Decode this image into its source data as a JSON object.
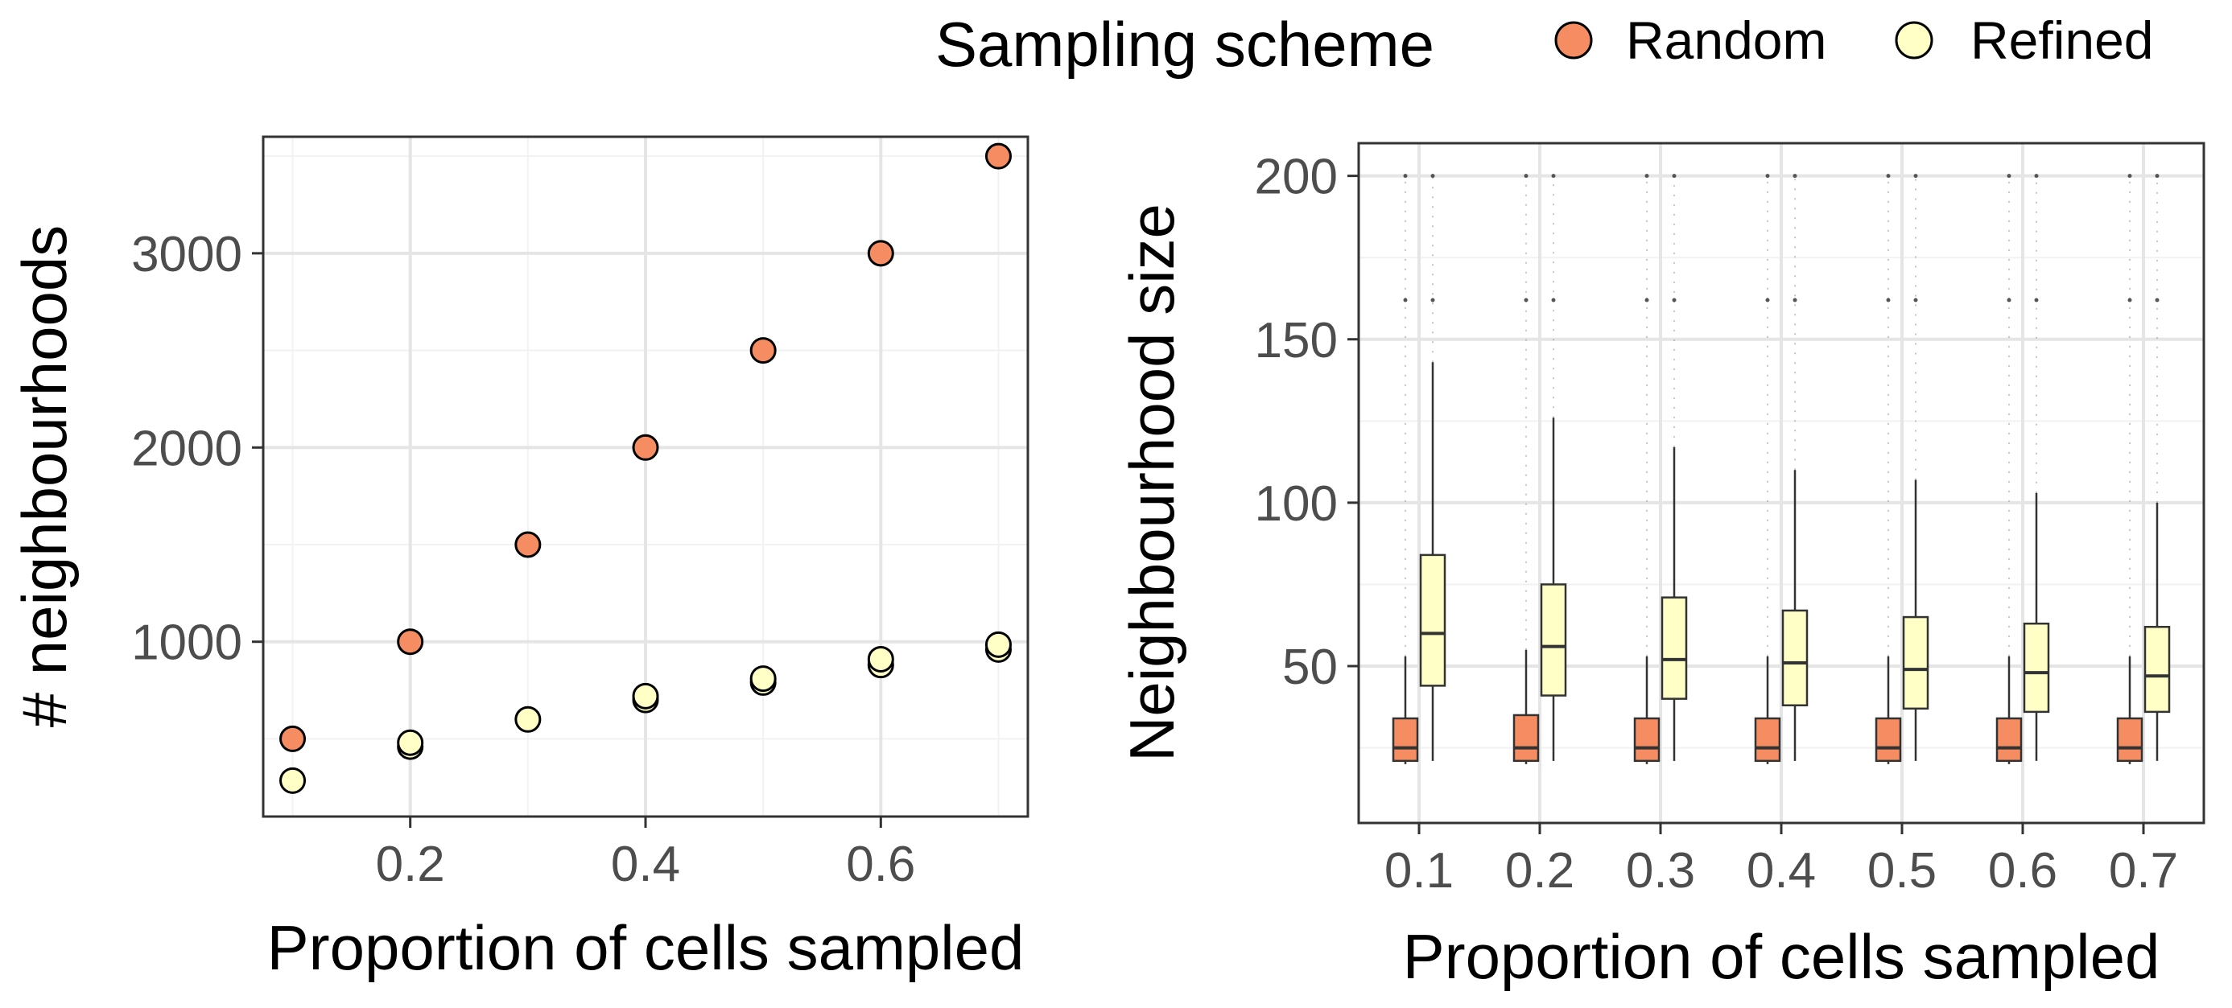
{
  "legend": {
    "title": "Sampling scheme",
    "items": [
      {
        "label": "Random",
        "color": "#F68D62"
      },
      {
        "label": "Refined",
        "color": "#FFFFC6"
      }
    ]
  },
  "chart_data": [
    {
      "type": "scatter",
      "xlabel": "Proportion of cells sampled",
      "ylabel": "# neighbourhoods",
      "xlim": [
        0.075,
        0.725
      ],
      "ylim": [
        100,
        3600
      ],
      "xticks": [
        0.2,
        0.4,
        0.6
      ],
      "xtick_labels": [
        "0.2",
        "0.4",
        "0.6"
      ],
      "yticks": [
        1000,
        2000,
        3000
      ],
      "ytick_labels": [
        "1000",
        "2000",
        "3000"
      ],
      "grid": true,
      "legend_position": "top",
      "series": [
        {
          "name": "Random",
          "color": "#F68D62",
          "x": [
            0.1,
            0.2,
            0.3,
            0.4,
            0.5,
            0.6,
            0.7
          ],
          "y": [
            500,
            1000,
            1500,
            2000,
            2500,
            3000,
            3500
          ]
        },
        {
          "name": "Refined",
          "color": "#FFFFC6",
          "x": [
            0.1,
            0.2,
            0.2,
            0.3,
            0.4,
            0.4,
            0.5,
            0.5,
            0.6,
            0.6,
            0.7,
            0.7
          ],
          "y": [
            285,
            460,
            480,
            600,
            700,
            720,
            790,
            810,
            880,
            910,
            960,
            985
          ]
        }
      ]
    },
    {
      "type": "boxplot",
      "xlabel": "Proportion of cells sampled",
      "ylabel": "Neighbourhood size",
      "ylim": [
        2,
        210
      ],
      "yticks": [
        50,
        100,
        150,
        200
      ],
      "ytick_labels": [
        "50",
        "100",
        "150",
        "200"
      ],
      "grid": true,
      "categories": [
        "0.1",
        "0.2",
        "0.3",
        "0.4",
        "0.5",
        "0.6",
        "0.7"
      ],
      "series": [
        {
          "name": "Random",
          "color": "#F68D62",
          "boxes": [
            {
              "whisker_low": 20,
              "q1": 21,
              "median": 25,
              "q3": 34,
              "whisker_high": 53
            },
            {
              "whisker_low": 20,
              "q1": 21,
              "median": 25,
              "q3": 35,
              "whisker_high": 55
            },
            {
              "whisker_low": 20,
              "q1": 21,
              "median": 25,
              "q3": 34,
              "whisker_high": 53
            },
            {
              "whisker_low": 20,
              "q1": 21,
              "median": 25,
              "q3": 34,
              "whisker_high": 53
            },
            {
              "whisker_low": 20,
              "q1": 21,
              "median": 25,
              "q3": 34,
              "whisker_high": 53
            },
            {
              "whisker_low": 20,
              "q1": 21,
              "median": 25,
              "q3": 34,
              "whisker_high": 53
            },
            {
              "whisker_low": 20,
              "q1": 21,
              "median": 25,
              "q3": 34,
              "whisker_high": 53
            }
          ]
        },
        {
          "name": "Refined",
          "color": "#FFFFC6",
          "boxes": [
            {
              "whisker_low": 21,
              "q1": 44,
              "median": 60,
              "q3": 84,
              "whisker_high": 143
            },
            {
              "whisker_low": 21,
              "q1": 41,
              "median": 56,
              "q3": 75,
              "whisker_high": 126
            },
            {
              "whisker_low": 21,
              "q1": 40,
              "median": 52,
              "q3": 71,
              "whisker_high": 117
            },
            {
              "whisker_low": 21,
              "q1": 38,
              "median": 51,
              "q3": 67,
              "whisker_high": 110
            },
            {
              "whisker_low": 21,
              "q1": 37,
              "median": 49,
              "q3": 65,
              "whisker_high": 107
            },
            {
              "whisker_low": 21,
              "q1": 36,
              "median": 48,
              "q3": 63,
              "whisker_high": 103
            },
            {
              "whisker_low": 21,
              "q1": 36,
              "median": 47,
              "q3": 62,
              "whisker_high": 100
            }
          ]
        }
      ]
    }
  ]
}
